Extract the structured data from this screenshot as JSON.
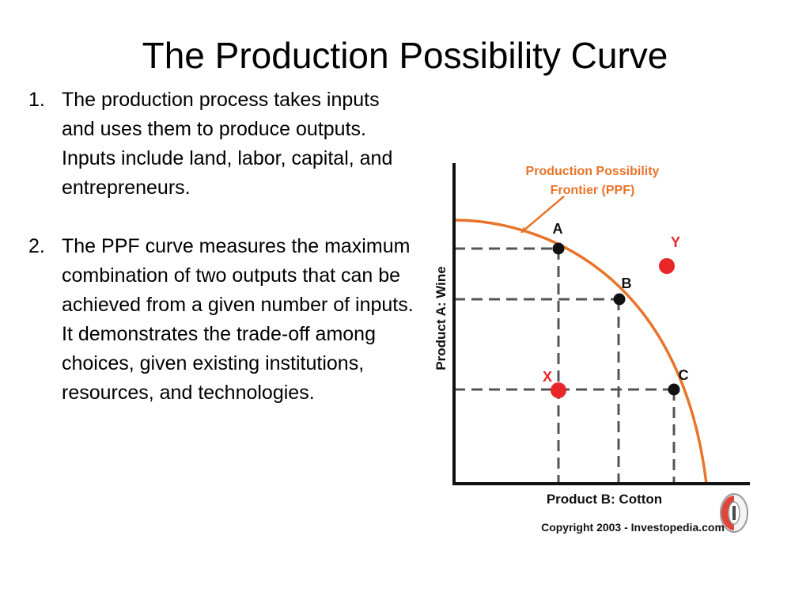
{
  "slide": {
    "title": "The Production Possibility Curve",
    "points": [
      {
        "number": "1.",
        "text": "The production process takes inputs and uses them to produce outputs. Inputs include land, labor, capital, and entrepreneurs."
      },
      {
        "number": "2.",
        "text": "The PPF curve measures the maximum combination of two outputs that can be achieved from a given number of inputs. It demonstrates the trade-off among choices, given existing institutions, resources, and technologies."
      }
    ]
  },
  "figure": {
    "callout_line1": "Production Possibility",
    "callout_line2": "Frontier (PPF)",
    "y_axis_label": "Product A:  Wine",
    "x_axis_label": "Product B: Cotton",
    "copyright": "Copyright 2003 - Investopedia.com",
    "points": [
      {
        "label": "A",
        "status": "on frontier"
      },
      {
        "label": "B",
        "status": "on frontier"
      },
      {
        "label": "C",
        "status": "on frontier"
      },
      {
        "label": "X",
        "status": "inside frontier"
      },
      {
        "label": "Y",
        "status": "outside frontier"
      }
    ],
    "colors": {
      "curve": "#e8742a",
      "label_orange": "#e8742a",
      "point_red": "#e8262a",
      "point_black": "#111111",
      "guide_dash": "#555555"
    },
    "logo_icon": "investopedia-logo-icon"
  }
}
